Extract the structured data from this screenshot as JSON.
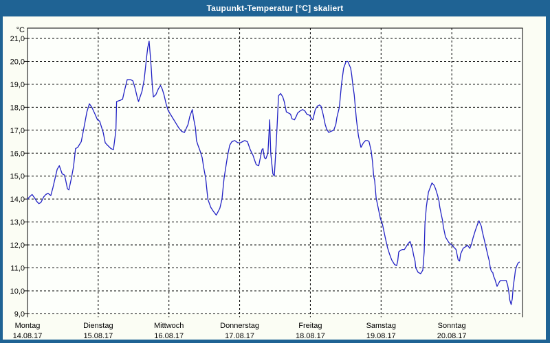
{
  "window": {
    "title": "Taupunkt-Temperatur [°C] skaliert"
  },
  "colors": {
    "titlebar_bg": "#1f6394",
    "titlebar_text": "#ffffff",
    "panel_bg": "#fbfdf4",
    "plot_bg": "#fdfffb",
    "frame": "#000000",
    "grid": "#000000",
    "line": "#2121c4"
  },
  "chart_data": {
    "type": "line",
    "title": "Taupunkt-Temperatur [°C] skaliert",
    "grid": "dashed",
    "legend": "none",
    "y_axis": {
      "unit_label": "°C",
      "min": 9,
      "max": 21,
      "tick_step": 1,
      "tick_labels": [
        "21,0",
        "20,0",
        "19,0",
        "18,0",
        "17,0",
        "16,0",
        "15,0",
        "14,0",
        "13,0",
        "12,0",
        "11,0",
        "10,0",
        "9,0"
      ]
    },
    "x_axis": {
      "span_days": 7,
      "days": [
        {
          "name": "Montag",
          "date": "14.08.17"
        },
        {
          "name": "Dienstag",
          "date": "15.08.17"
        },
        {
          "name": "Mittwoch",
          "date": "16.08.17"
        },
        {
          "name": "Donnerstag",
          "date": "17.08.17"
        },
        {
          "name": "Freitag",
          "date": "18.08.17"
        },
        {
          "name": "Samstag",
          "date": "19.08.17"
        },
        {
          "name": "Sonntag",
          "date": "20.08.17"
        }
      ]
    },
    "series": [
      {
        "name": "Taupunkt-Temperatur",
        "unit": "°C",
        "color": "#2121c4",
        "points_day_temp": [
          [
            0.0,
            14.0
          ],
          [
            0.03,
            14.1
          ],
          [
            0.065,
            14.2
          ],
          [
            0.1,
            14.05
          ],
          [
            0.13,
            13.9
          ],
          [
            0.16,
            13.8
          ],
          [
            0.19,
            13.85
          ],
          [
            0.23,
            14.1
          ],
          [
            0.26,
            14.2
          ],
          [
            0.29,
            14.25
          ],
          [
            0.31,
            14.2
          ],
          [
            0.33,
            14.15
          ],
          [
            0.36,
            14.5
          ],
          [
            0.39,
            14.9
          ],
          [
            0.42,
            15.3
          ],
          [
            0.45,
            15.45
          ],
          [
            0.49,
            15.1
          ],
          [
            0.52,
            15.05
          ],
          [
            0.535,
            14.9
          ],
          [
            0.565,
            14.45
          ],
          [
            0.585,
            14.4
          ],
          [
            0.62,
            14.9
          ],
          [
            0.65,
            15.4
          ],
          [
            0.68,
            16.2
          ],
          [
            0.71,
            16.25
          ],
          [
            0.76,
            16.5
          ],
          [
            0.81,
            17.3
          ],
          [
            0.84,
            17.8
          ],
          [
            0.875,
            18.15
          ],
          [
            0.91,
            18.0
          ],
          [
            0.955,
            17.7
          ],
          [
            0.99,
            17.45
          ],
          [
            1.02,
            17.4
          ],
          [
            1.07,
            16.9
          ],
          [
            1.1,
            16.45
          ],
          [
            1.13,
            16.35
          ],
          [
            1.18,
            16.2
          ],
          [
            1.215,
            16.15
          ],
          [
            1.25,
            17.0
          ],
          [
            1.26,
            18.25
          ],
          [
            1.31,
            18.3
          ],
          [
            1.345,
            18.35
          ],
          [
            1.37,
            18.7
          ],
          [
            1.41,
            19.2
          ],
          [
            1.46,
            19.2
          ],
          [
            1.49,
            19.15
          ],
          [
            1.52,
            18.85
          ],
          [
            1.555,
            18.4
          ],
          [
            1.57,
            18.25
          ],
          [
            1.62,
            18.7
          ],
          [
            1.65,
            19.2
          ],
          [
            1.685,
            20.2
          ],
          [
            1.7,
            20.6
          ],
          [
            1.72,
            20.88
          ],
          [
            1.735,
            20.3
          ],
          [
            1.75,
            19.7
          ],
          [
            1.765,
            18.95
          ],
          [
            1.78,
            18.45
          ],
          [
            1.815,
            18.55
          ],
          [
            1.85,
            18.8
          ],
          [
            1.88,
            18.95
          ],
          [
            1.905,
            18.8
          ],
          [
            1.93,
            18.55
          ],
          [
            1.96,
            18.15
          ],
          [
            1.99,
            17.85
          ],
          [
            2.02,
            17.7
          ],
          [
            2.06,
            17.5
          ],
          [
            2.1,
            17.3
          ],
          [
            2.14,
            17.1
          ],
          [
            2.18,
            16.95
          ],
          [
            2.22,
            16.9
          ],
          [
            2.27,
            17.25
          ],
          [
            2.295,
            17.6
          ],
          [
            2.33,
            17.9
          ],
          [
            2.35,
            17.5
          ],
          [
            2.375,
            17.1
          ],
          [
            2.39,
            16.55
          ],
          [
            2.41,
            16.35
          ],
          [
            2.44,
            16.1
          ],
          [
            2.47,
            15.8
          ],
          [
            2.49,
            15.4
          ],
          [
            2.52,
            14.9
          ],
          [
            2.55,
            14.0
          ],
          [
            2.59,
            13.65
          ],
          [
            2.62,
            13.5
          ],
          [
            2.67,
            13.3
          ],
          [
            2.72,
            13.6
          ],
          [
            2.75,
            14.0
          ],
          [
            2.78,
            14.9
          ],
          [
            2.81,
            15.5
          ],
          [
            2.83,
            15.9
          ],
          [
            2.86,
            16.35
          ],
          [
            2.89,
            16.5
          ],
          [
            2.93,
            16.55
          ],
          [
            2.975,
            16.45
          ],
          [
            3.01,
            16.45
          ],
          [
            3.04,
            16.5
          ],
          [
            3.07,
            16.55
          ],
          [
            3.11,
            16.5
          ],
          [
            3.15,
            16.15
          ],
          [
            3.19,
            15.9
          ],
          [
            3.205,
            15.75
          ],
          [
            3.235,
            15.5
          ],
          [
            3.27,
            15.45
          ],
          [
            3.315,
            16.15
          ],
          [
            3.33,
            16.2
          ],
          [
            3.35,
            15.8
          ],
          [
            3.37,
            15.75
          ],
          [
            3.4,
            16.0
          ],
          [
            3.425,
            17.45
          ],
          [
            3.44,
            16.0
          ],
          [
            3.47,
            15.1
          ],
          [
            3.49,
            15.0
          ],
          [
            3.51,
            16.0
          ],
          [
            3.53,
            17.2
          ],
          [
            3.55,
            18.5
          ],
          [
            3.58,
            18.6
          ],
          [
            3.61,
            18.45
          ],
          [
            3.63,
            18.25
          ],
          [
            3.66,
            17.8
          ],
          [
            3.69,
            17.75
          ],
          [
            3.72,
            17.7
          ],
          [
            3.74,
            17.5
          ],
          [
            3.775,
            17.45
          ],
          [
            3.8,
            17.6
          ],
          [
            3.82,
            17.75
          ],
          [
            3.86,
            17.85
          ],
          [
            3.89,
            17.9
          ],
          [
            3.92,
            17.85
          ],
          [
            3.95,
            17.7
          ],
          [
            3.99,
            17.65
          ],
          [
            4.02,
            17.5
          ],
          [
            4.035,
            17.45
          ],
          [
            4.07,
            17.9
          ],
          [
            4.1,
            18.05
          ],
          [
            4.13,
            18.1
          ],
          [
            4.15,
            18.05
          ],
          [
            4.18,
            17.7
          ],
          [
            4.21,
            17.25
          ],
          [
            4.23,
            17.05
          ],
          [
            4.26,
            16.9
          ],
          [
            4.29,
            16.95
          ],
          [
            4.33,
            17.0
          ],
          [
            4.36,
            17.25
          ],
          [
            4.375,
            17.55
          ],
          [
            4.41,
            18.0
          ],
          [
            4.44,
            19.0
          ],
          [
            4.47,
            19.7
          ],
          [
            4.505,
            20.0
          ],
          [
            4.53,
            20.0
          ],
          [
            4.57,
            19.7
          ],
          [
            4.585,
            19.4
          ],
          [
            4.6,
            19.0
          ],
          [
            4.62,
            18.55
          ],
          [
            4.635,
            18.05
          ],
          [
            4.65,
            17.5
          ],
          [
            4.67,
            17.0
          ],
          [
            4.68,
            16.75
          ],
          [
            4.715,
            16.25
          ],
          [
            4.75,
            16.45
          ],
          [
            4.78,
            16.55
          ],
          [
            4.81,
            16.55
          ],
          [
            4.83,
            16.5
          ],
          [
            4.86,
            16.1
          ],
          [
            4.88,
            15.6
          ],
          [
            4.895,
            15.0
          ],
          [
            4.91,
            14.8
          ],
          [
            4.93,
            14.05
          ],
          [
            4.96,
            13.6
          ],
          [
            4.99,
            13.15
          ],
          [
            5.02,
            12.9
          ],
          [
            5.06,
            12.3
          ],
          [
            5.09,
            11.9
          ],
          [
            5.12,
            11.6
          ],
          [
            5.15,
            11.35
          ],
          [
            5.19,
            11.15
          ],
          [
            5.22,
            11.1
          ],
          [
            5.235,
            11.3
          ],
          [
            5.25,
            11.7
          ],
          [
            5.27,
            11.75
          ],
          [
            5.3,
            11.8
          ],
          [
            5.33,
            11.8
          ],
          [
            5.35,
            11.9
          ],
          [
            5.38,
            12.05
          ],
          [
            5.41,
            12.15
          ],
          [
            5.445,
            11.8
          ],
          [
            5.46,
            11.55
          ],
          [
            5.48,
            11.3
          ],
          [
            5.49,
            11.0
          ],
          [
            5.525,
            10.8
          ],
          [
            5.56,
            10.75
          ],
          [
            5.59,
            10.9
          ],
          [
            5.61,
            11.7
          ],
          [
            5.62,
            12.9
          ],
          [
            5.64,
            13.65
          ],
          [
            5.655,
            14.0
          ],
          [
            5.67,
            14.3
          ],
          [
            5.72,
            14.7
          ],
          [
            5.75,
            14.6
          ],
          [
            5.77,
            14.45
          ],
          [
            5.8,
            14.15
          ],
          [
            5.82,
            13.9
          ],
          [
            5.83,
            13.65
          ],
          [
            5.85,
            13.35
          ],
          [
            5.87,
            13.05
          ],
          [
            5.88,
            12.8
          ],
          [
            5.9,
            12.5
          ],
          [
            5.91,
            12.35
          ],
          [
            5.93,
            12.25
          ],
          [
            5.96,
            12.1
          ],
          [
            6.0,
            12.0
          ],
          [
            6.03,
            11.9
          ],
          [
            6.06,
            11.8
          ],
          [
            6.09,
            11.35
          ],
          [
            6.11,
            11.3
          ],
          [
            6.125,
            11.6
          ],
          [
            6.16,
            11.85
          ],
          [
            6.21,
            11.95
          ],
          [
            6.22,
            12.0
          ],
          [
            6.255,
            11.85
          ],
          [
            6.28,
            12.05
          ],
          [
            6.3,
            12.3
          ],
          [
            6.335,
            12.65
          ],
          [
            6.37,
            12.95
          ],
          [
            6.385,
            13.05
          ],
          [
            6.42,
            12.8
          ],
          [
            6.43,
            12.6
          ],
          [
            6.45,
            12.35
          ],
          [
            6.48,
            11.95
          ],
          [
            6.51,
            11.55
          ],
          [
            6.53,
            11.3
          ],
          [
            6.545,
            11.0
          ],
          [
            6.56,
            10.85
          ],
          [
            6.58,
            10.8
          ],
          [
            6.59,
            10.65
          ],
          [
            6.61,
            10.5
          ],
          [
            6.63,
            10.3
          ],
          [
            6.64,
            10.2
          ],
          [
            6.675,
            10.4
          ],
          [
            6.69,
            10.45
          ],
          [
            6.74,
            10.45
          ],
          [
            6.77,
            10.45
          ],
          [
            6.79,
            10.25
          ],
          [
            6.805,
            10.0
          ],
          [
            6.82,
            9.6
          ],
          [
            6.84,
            9.4
          ],
          [
            6.855,
            9.65
          ],
          [
            6.87,
            10.2
          ],
          [
            6.89,
            10.65
          ],
          [
            6.9,
            10.9
          ],
          [
            6.92,
            11.1
          ],
          [
            6.935,
            11.2
          ],
          [
            6.955,
            11.25
          ]
        ]
      }
    ]
  }
}
